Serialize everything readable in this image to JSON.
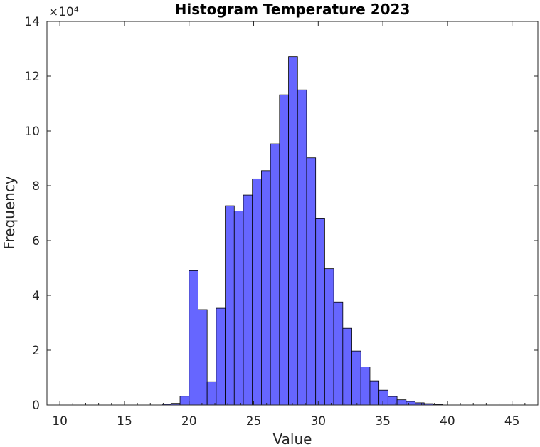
{
  "chart_data": {
    "type": "bar",
    "title": "Histogram Temperature 2023",
    "xlabel": "Value",
    "ylabel": "Frequency",
    "y_exponent_label": "×10⁴",
    "xlim": [
      9,
      47
    ],
    "ylim": [
      0,
      140000
    ],
    "xticks": [
      10,
      15,
      20,
      25,
      30,
      35,
      40,
      45
    ],
    "yticks": [
      0,
      20000,
      40000,
      60000,
      80000,
      100000,
      120000,
      140000
    ],
    "ytick_labels": [
      "0",
      "2",
      "4",
      "6",
      "8",
      "10",
      "12",
      "14"
    ],
    "grid": false,
    "bin_width": 0.7,
    "bins": [
      {
        "x": 17.9,
        "value": 300
      },
      {
        "x": 18.6,
        "value": 600
      },
      {
        "x": 19.3,
        "value": 3200
      },
      {
        "x": 20.0,
        "value": 49000
      },
      {
        "x": 20.7,
        "value": 34800
      },
      {
        "x": 21.4,
        "value": 8500
      },
      {
        "x": 22.1,
        "value": 35300
      },
      {
        "x": 22.8,
        "value": 72700
      },
      {
        "x": 23.5,
        "value": 70800
      },
      {
        "x": 24.2,
        "value": 76600
      },
      {
        "x": 24.9,
        "value": 82500
      },
      {
        "x": 25.6,
        "value": 85500
      },
      {
        "x": 26.3,
        "value": 95300
      },
      {
        "x": 27.0,
        "value": 113200
      },
      {
        "x": 27.7,
        "value": 127100
      },
      {
        "x": 28.4,
        "value": 115000
      },
      {
        "x": 29.1,
        "value": 90200
      },
      {
        "x": 29.8,
        "value": 68200
      },
      {
        "x": 30.5,
        "value": 49700
      },
      {
        "x": 31.2,
        "value": 37600
      },
      {
        "x": 31.9,
        "value": 28000
      },
      {
        "x": 32.6,
        "value": 19700
      },
      {
        "x": 33.3,
        "value": 13900
      },
      {
        "x": 34.0,
        "value": 8800
      },
      {
        "x": 34.7,
        "value": 5400
      },
      {
        "x": 35.4,
        "value": 3100
      },
      {
        "x": 36.1,
        "value": 1900
      },
      {
        "x": 36.8,
        "value": 1300
      },
      {
        "x": 37.5,
        "value": 800
      },
      {
        "x": 38.2,
        "value": 500
      },
      {
        "x": 38.9,
        "value": 250
      }
    ]
  },
  "colors": {
    "bar_fill": "#6666ff",
    "bar_stroke": "#000000",
    "axis": "#262626"
  }
}
